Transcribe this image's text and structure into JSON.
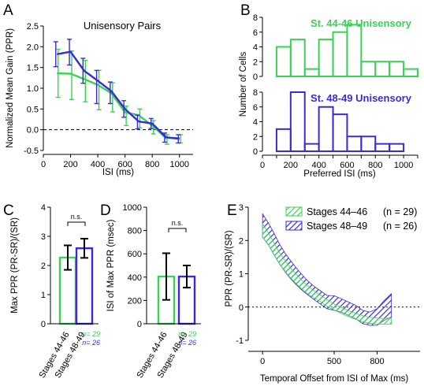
{
  "colors": {
    "green": "#39d353",
    "blue": "#3a2bd6",
    "black": "#000000"
  },
  "chart_data": [
    {
      "panel": "A",
      "type": "line",
      "title": "Unisensory Pairs",
      "xlabel": "ISI (ms)",
      "ylabel": "Normalized Mean Gain (PPR)",
      "xlim": [
        0,
        1100
      ],
      "ylim": [
        -0.6,
        2.5
      ],
      "xticks": [
        0,
        200,
        400,
        600,
        800,
        1000
      ],
      "yticks": [
        -0.5,
        0.0,
        0.5,
        1.0,
        1.5,
        2.0,
        2.5
      ],
      "tick_labels_x": [
        "0",
        "200",
        "400",
        "600",
        "800",
        "1000"
      ],
      "tick_labels_y": [
        "-0.5",
        "0.0",
        "0.5",
        "1.0",
        "1.5",
        "2.0",
        "2.5"
      ],
      "reference_line_y": 0,
      "x": [
        100,
        200,
        300,
        400,
        500,
        600,
        700,
        800,
        900,
        1000
      ],
      "series": [
        {
          "color_key": "green",
          "values": [
            1.36,
            1.35,
            1.22,
            1.08,
            0.88,
            0.42,
            0.35,
            0.1,
            -0.2,
            -0.2
          ],
          "err_lo": [
            0.58,
            0.62,
            0.55,
            0.6,
            0.45,
            0.32,
            0.3,
            0.2,
            0.15,
            0.12
          ],
          "err_hi": [
            0.58,
            0.55,
            0.45,
            0.35,
            0.25,
            0.15,
            0.15,
            0.12,
            0.08,
            0.08
          ]
        },
        {
          "color_key": "blue",
          "values": [
            1.82,
            1.88,
            1.42,
            1.18,
            0.93,
            0.5,
            0.2,
            0.15,
            -0.18,
            -0.22
          ],
          "err_lo": [
            0.3,
            0.32,
            0.3,
            0.55,
            0.3,
            0.2,
            0.18,
            0.12,
            0.12,
            0.1
          ],
          "err_hi": [
            0.3,
            0.3,
            0.3,
            0.25,
            0.22,
            0.2,
            0.15,
            0.12,
            0.1,
            0.1
          ]
        }
      ]
    },
    {
      "panel": "B",
      "type": "bar",
      "xlabel": "Preferred ISI (ms)",
      "ylabel": "Number of Cells",
      "xlim": [
        0,
        1100
      ],
      "xticks": [
        0,
        100,
        200,
        300,
        400,
        500,
        600,
        700,
        800,
        900,
        1000,
        1100
      ],
      "tick_labels_x": [
        "0",
        "",
        "200",
        "",
        "400",
        "",
        "600",
        "",
        "800",
        "",
        "1000",
        ""
      ],
      "bin_edges": [
        0,
        100,
        200,
        300,
        400,
        500,
        600,
        700,
        800,
        900,
        1000,
        1100
      ],
      "subplots": [
        {
          "title": "St. 44-46 Unisensory",
          "color_key": "green",
          "ylim": [
            0,
            8
          ],
          "yticks": [
            0,
            2,
            4,
            6,
            8
          ],
          "tick_labels_y": [
            "0",
            "2",
            "4",
            "6",
            "8"
          ],
          "values": [
            0,
            4,
            5,
            1,
            5,
            6,
            7,
            2,
            2,
            2,
            1
          ]
        },
        {
          "title": "St. 48-49 Unisensory",
          "color_key": "blue",
          "ylim": [
            0,
            8
          ],
          "yticks": [
            0,
            2,
            4,
            6,
            8
          ],
          "tick_labels_y": [
            "0",
            "2",
            "4",
            "6",
            "8"
          ],
          "values": [
            0,
            3,
            8,
            1,
            6,
            5,
            2,
            2,
            1,
            1,
            0
          ]
        }
      ]
    },
    {
      "panel": "C",
      "type": "bar",
      "ylabel": "Max PPR (PR-SR)/(SR)",
      "ylim": [
        0,
        4
      ],
      "yticks": [
        0,
        1,
        2,
        3,
        4
      ],
      "tick_labels_y": [
        "0",
        "1",
        "2",
        "3",
        "4"
      ],
      "categories": [
        "Stages 44-46",
        "Stages 48-49"
      ],
      "values": [
        2.27,
        2.59
      ],
      "err": [
        0.42,
        0.33
      ],
      "significance": "n.s.",
      "n_labels": [
        "n= 29",
        "n= 26"
      ]
    },
    {
      "panel": "D",
      "type": "bar",
      "ylabel": "ISI of Max PPR (msec)",
      "ylim": [
        0,
        1000
      ],
      "yticks": [
        0,
        200,
        400,
        600,
        800,
        1000
      ],
      "tick_labels_y": [
        "0",
        "200",
        "400",
        "600",
        "800",
        "1000"
      ],
      "categories": [
        "Stages 44-46",
        "Stages 48-49"
      ],
      "values": [
        405,
        405
      ],
      "err": [
        200,
        95
      ],
      "significance": "n.s.",
      "n_labels": [
        "n= 29",
        "n= 26"
      ]
    },
    {
      "panel": "E",
      "type": "area",
      "xlabel": "Temporal Offset from ISI of Max (ms)",
      "ylabel": "PPR (PR-SR)/(SR)",
      "xlim": [
        -100,
        1100
      ],
      "ylim": [
        -1.1,
        3
      ],
      "xticks": [
        0,
        500,
        800
      ],
      "tick_labels_x": [
        "0",
        "500",
        "800"
      ],
      "yticks": [
        -1,
        0,
        1,
        2,
        3
      ],
      "tick_labels_y": [
        "-1",
        "0",
        "1",
        "2",
        "3"
      ],
      "reference_line_y": 0,
      "legend": {
        "location": "top-right",
        "entries": [
          "Stages 44–46",
          "Stages 48–49"
        ],
        "n_text": [
          "(n = 29)",
          "(n = 26)"
        ]
      },
      "series": [
        {
          "color_key": "green",
          "x": [
            0,
            40,
            80,
            120,
            160,
            200,
            240,
            280,
            320,
            360,
            400,
            450,
            500,
            550,
            600,
            650,
            700,
            750,
            800,
            850,
            900
          ],
          "mean": [
            2.3,
            2.05,
            1.75,
            1.45,
            1.22,
            1.0,
            0.82,
            0.65,
            0.5,
            0.38,
            0.27,
            0.12,
            0.0,
            -0.1,
            -0.2,
            -0.28,
            -0.35,
            -0.4,
            -0.42,
            -0.43,
            -0.42
          ],
          "band": [
            0.2,
            0.18,
            0.18,
            0.17,
            0.16,
            0.15,
            0.14,
            0.13,
            0.12,
            0.11,
            0.1,
            0.1,
            0.09,
            0.09,
            0.09,
            0.09,
            0.09,
            0.09,
            0.09,
            0.09,
            0.09
          ]
        },
        {
          "color_key": "blue",
          "x": [
            0,
            40,
            80,
            120,
            160,
            200,
            240,
            280,
            320,
            360,
            400,
            450,
            500,
            550,
            600,
            650,
            700,
            750,
            800,
            850,
            900
          ],
          "mean": [
            2.45,
            2.2,
            1.9,
            1.58,
            1.32,
            1.1,
            0.9,
            0.72,
            0.56,
            0.42,
            0.3,
            0.15,
            0.12,
            0.05,
            -0.05,
            -0.15,
            -0.3,
            -0.35,
            -0.3,
            -0.1,
            0.05
          ],
          "band": [
            0.35,
            0.33,
            0.32,
            0.3,
            0.28,
            0.27,
            0.25,
            0.23,
            0.21,
            0.2,
            0.2,
            0.2,
            0.22,
            0.2,
            0.2,
            0.2,
            0.2,
            0.2,
            0.25,
            0.3,
            0.35
          ]
        }
      ]
    }
  ]
}
